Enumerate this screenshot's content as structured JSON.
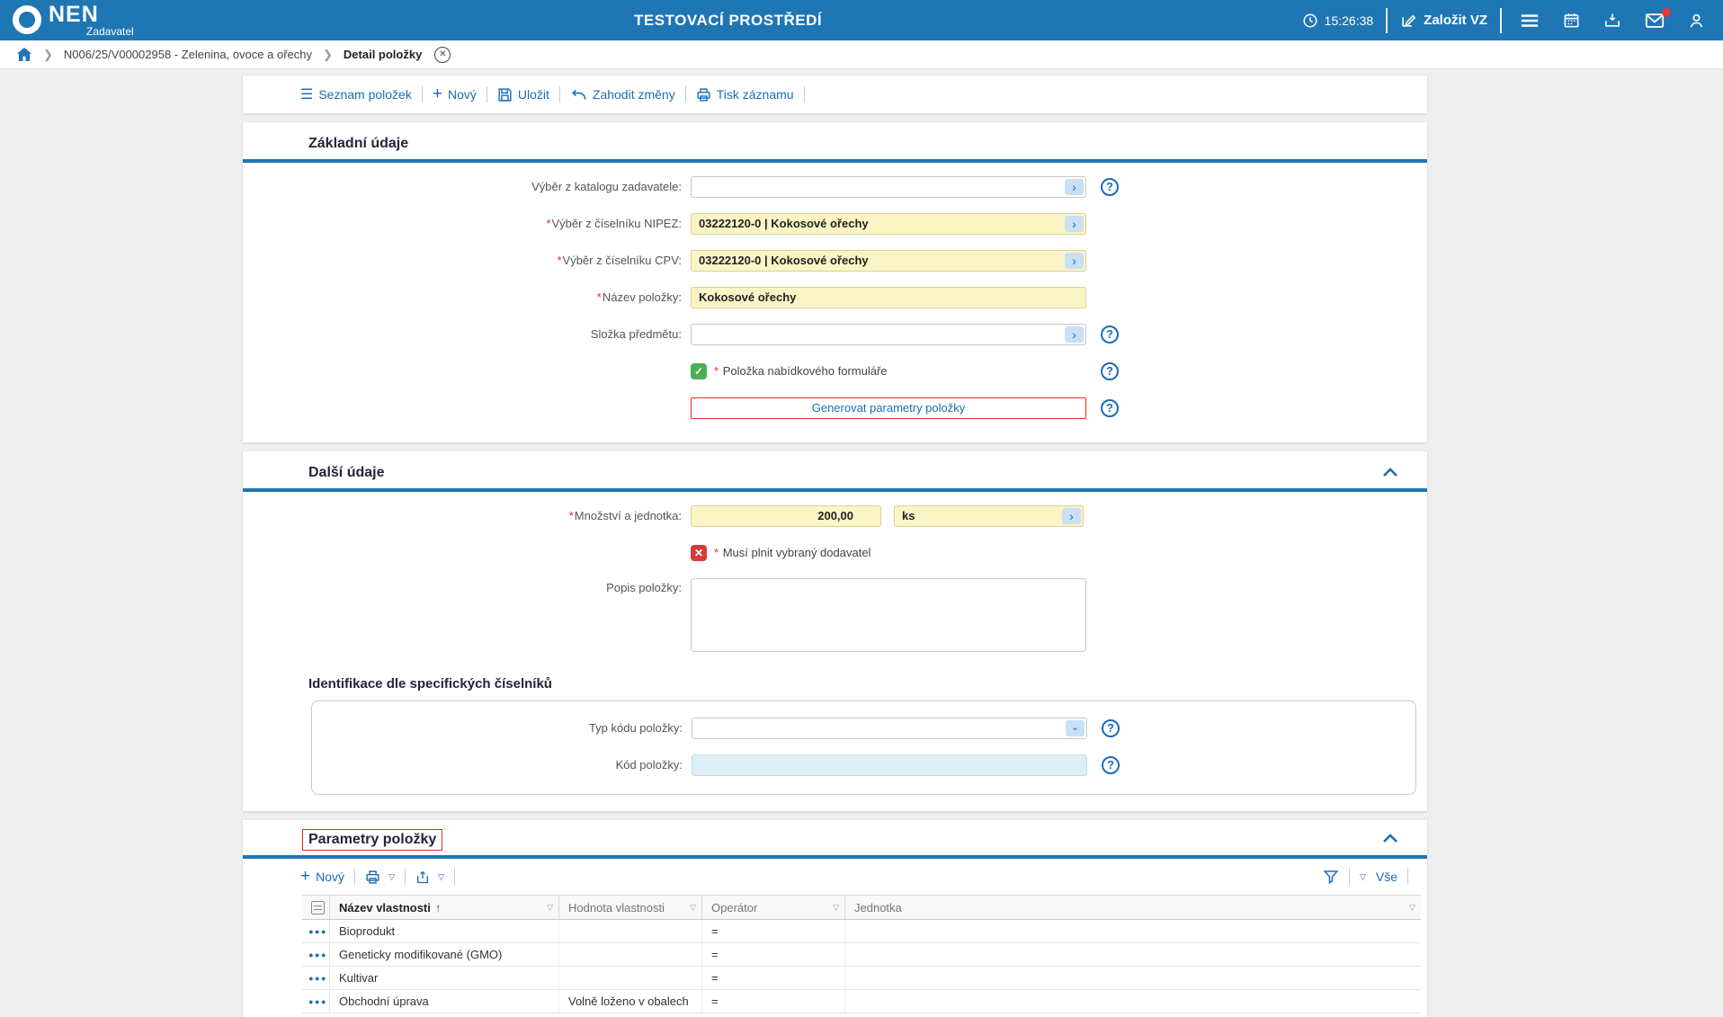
{
  "ui": {
    "req": "*"
  },
  "header": {
    "brand": "NEN",
    "brand_sub": "Zadavatel",
    "env_title": "TESTOVACÍ PROSTŘEDÍ",
    "time": "15:26:38",
    "new_tender_label": "Založit VZ"
  },
  "breadcrumb": {
    "item": "N006/25/V00002958 - Zelenina, ovoce a ořechy",
    "page": "Detail položky"
  },
  "toolbar": {
    "list_label": "Seznam položek",
    "new_label": "Nový",
    "save_label": "Uložit",
    "discard_label": "Zahodit změny",
    "print_label": "Tisk záznamu"
  },
  "basic": {
    "title": "Základní údaje",
    "catalog_label": "Výběr z katalogu zadavatele:",
    "catalog_value": "",
    "nipez_label": "Výběr z číselníku NIPEZ:",
    "nipez_value": "03222120-0 | Kokosové ořechy",
    "cpv_label": "Výběr z číselníku CPV:",
    "cpv_value": "03222120-0 | Kokosové ořechy",
    "name_label": "Název položky:",
    "name_value": "Kokosové ořechy",
    "folder_label": "Složka předmětu:",
    "folder_value": "",
    "offer_checkbox_label": "Položka nabídkového formuláře",
    "generate_button": "Generovat parametry položky"
  },
  "details": {
    "title": "Další údaje",
    "qty_label": "Množství a jednotka:",
    "qty_value": "200,00",
    "unit_value": "ks",
    "supplier_checkbox_label": "Musí plnit vybraný dodavatel",
    "desc_label": "Popis položky:",
    "desc_value": "",
    "ident_title": "Identifikace dle specifických číselníků",
    "code_type_label": "Typ kódu položky:",
    "code_type_value": "",
    "code_label": "Kód položky:",
    "code_value": ""
  },
  "params": {
    "title": "Parametry položky",
    "new_label": "Nový",
    "all_label": "Vše",
    "columns": [
      "Název vlastnosti",
      "Hodnota vlastnosti",
      "Operátor",
      "Jednotka"
    ],
    "rows": [
      {
        "name": "Bioprodukt",
        "value": "",
        "op": "=",
        "unit": ""
      },
      {
        "name": "Geneticky modifikované (GMO)",
        "value": "",
        "op": "=",
        "unit": ""
      },
      {
        "name": "Kultivar",
        "value": "",
        "op": "=",
        "unit": ""
      },
      {
        "name": "Obchodní úprava",
        "value": "Volně loženo v obalech",
        "op": "=",
        "unit": ""
      }
    ]
  },
  "colors": {
    "header_blue": "#1F76B4",
    "accent_blue": "#1A6DB5",
    "field_yellow": "#FBF5C6",
    "readonly_cyan": "#DDEFF5",
    "success_green": "#4CAF50",
    "error_red": "#D63B3B",
    "alert_red": "#D93025"
  }
}
